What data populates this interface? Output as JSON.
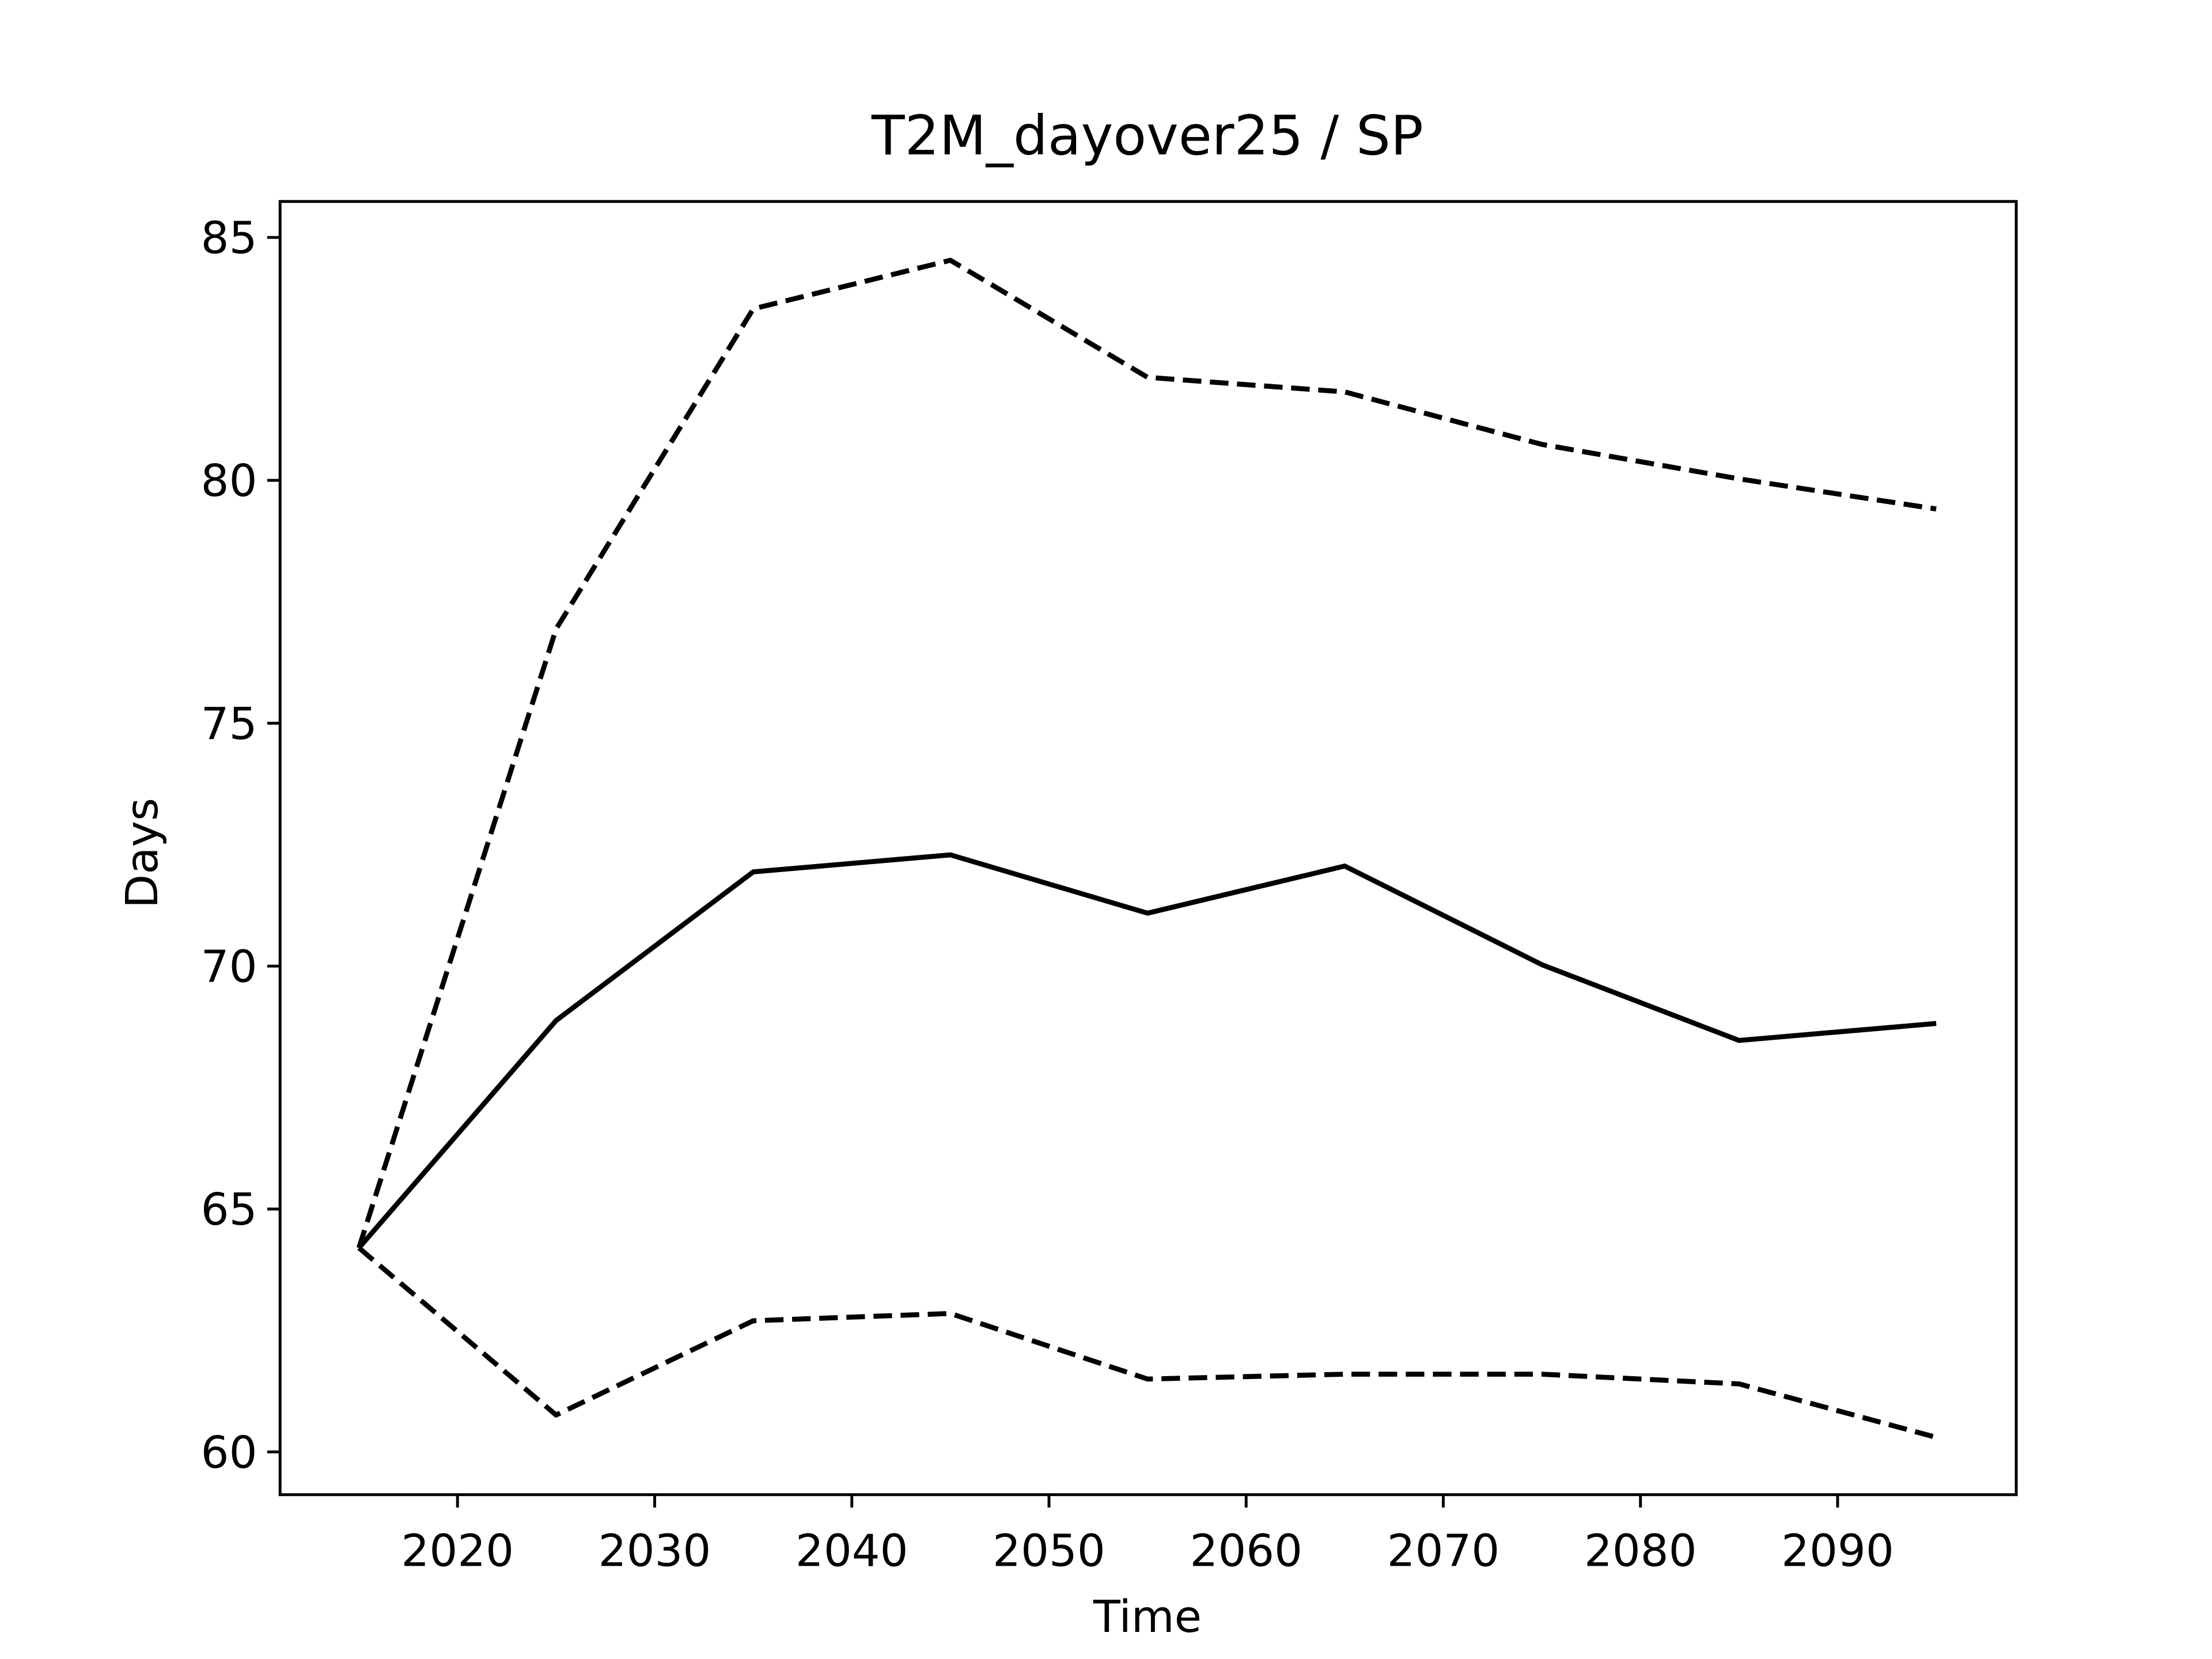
{
  "chart_data": {
    "type": "line",
    "title": "T2M_dayover25 / SP",
    "x_label": "Time",
    "y_label": "Days",
    "x": [
      2015,
      2025,
      2035,
      2045,
      2055,
      2065,
      2075,
      2085,
      2095
    ],
    "series": [
      {
        "color": "#000000",
        "dashed": false,
        "values": [
          64.2,
          68.88,
          71.94,
          72.29,
          71.09,
          72.06,
          70.03,
          68.47,
          68.82
        ]
      },
      {
        "color": "#000000",
        "dashed": true,
        "values": [
          64.2,
          76.94,
          83.53,
          84.53,
          82.12,
          81.82,
          80.74,
          80.03,
          79.41
        ]
      },
      {
        "color": "#000000",
        "dashed": true,
        "values": [
          64.2,
          60.76,
          62.7,
          62.85,
          61.5,
          61.6,
          61.6,
          61.4,
          60.3
        ]
      }
    ],
    "xlim": [
      2011,
      2099.06
    ],
    "xticks": [
      2020,
      2030,
      2040,
      2050,
      2060,
      2070,
      2080,
      2090
    ],
    "ylim": [
      59.12,
      85.74
    ],
    "yticks": [
      60,
      65,
      70,
      75,
      80,
      85
    ],
    "grid": false
  }
}
